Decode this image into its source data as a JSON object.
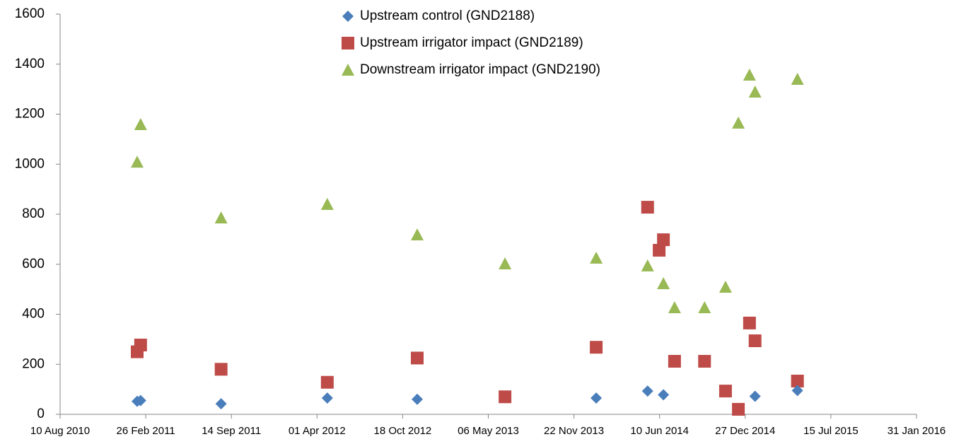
{
  "chart_data": {
    "type": "scatter",
    "xlim": [
      "2010-08-10",
      "2016-01-31"
    ],
    "xticks": [
      {
        "value": "2010-08-10",
        "label": "10 Aug 2010"
      },
      {
        "value": "2011-02-26",
        "label": "26 Feb 2011"
      },
      {
        "value": "2011-09-14",
        "label": "14 Sep 2011"
      },
      {
        "value": "2012-04-01",
        "label": "01 Apr 2012"
      },
      {
        "value": "2012-10-18",
        "label": "18 Oct 2012"
      },
      {
        "value": "2013-05-06",
        "label": "06 May 2013"
      },
      {
        "value": "2013-11-22",
        "label": "22 Nov 2013"
      },
      {
        "value": "2014-06-10",
        "label": "10 Jun 2014"
      },
      {
        "value": "2014-12-27",
        "label": "27 Dec 2014"
      },
      {
        "value": "2015-07-15",
        "label": "15 Jul 2015"
      },
      {
        "value": "2016-01-31",
        "label": "31 Jan 2016"
      }
    ],
    "ylim": [
      0,
      1600
    ],
    "yticks": [
      0,
      200,
      400,
      600,
      800,
      1000,
      1200,
      1400,
      1600
    ],
    "grid": false,
    "legend": "top",
    "series": [
      {
        "name": "Upstream control (GND2188)",
        "color": "#4a7ebb",
        "marker": "diamond",
        "x": [
          "2011-02-06",
          "2011-02-14",
          "2011-08-21",
          "2012-04-25",
          "2012-11-21",
          "2014-01-13",
          "2014-05-13",
          "2014-06-19",
          "2015-01-19",
          "2015-04-28"
        ],
        "values": [
          52,
          55,
          42,
          65,
          60,
          65,
          93,
          78,
          72,
          95
        ]
      },
      {
        "name": "Upstream irrigator impact (GND2189)",
        "color": "#be4b48",
        "marker": "square",
        "x": [
          "2011-02-06",
          "2011-02-14",
          "2011-08-21",
          "2012-04-25",
          "2012-11-21",
          "2013-06-14",
          "2014-01-13",
          "2014-05-13",
          "2014-06-09",
          "2014-06-19",
          "2014-07-15",
          "2014-09-23",
          "2014-11-11",
          "2014-12-11",
          "2015-01-06",
          "2015-01-19",
          "2015-04-28"
        ],
        "values": [
          250,
          277,
          180,
          128,
          225,
          70,
          268,
          828,
          656,
          698,
          212,
          212,
          93,
          20,
          365,
          294,
          133
        ]
      },
      {
        "name": "Downstream irrigator impact (GND2190)",
        "color": "#98b954",
        "marker": "triangle",
        "x": [
          "2011-02-06",
          "2011-02-14",
          "2011-08-21",
          "2012-04-25",
          "2012-11-21",
          "2013-06-14",
          "2014-01-13",
          "2014-05-13",
          "2014-06-19",
          "2014-07-15",
          "2014-09-23",
          "2014-11-11",
          "2014-12-11",
          "2015-01-06",
          "2015-01-19",
          "2015-04-28"
        ],
        "values": [
          1009,
          1159,
          786,
          840,
          718,
          602,
          625,
          594,
          523,
          427,
          427,
          509,
          1165,
          1357,
          1289,
          1340
        ]
      }
    ]
  }
}
